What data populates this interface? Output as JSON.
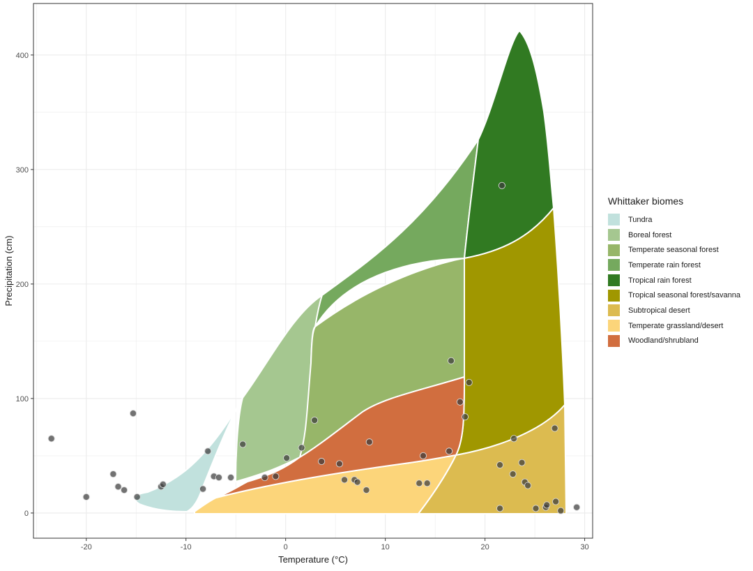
{
  "chart_data": {
    "type": "scatter",
    "xlabel": "Temperature (°C)",
    "ylabel": "Precipitation (cm)",
    "xlim": [
      -25.3,
      30.8
    ],
    "ylim": [
      -22,
      445
    ],
    "x_ticks": [
      -20,
      -10,
      0,
      10,
      20,
      30
    ],
    "y_ticks": [
      0,
      100,
      200,
      300,
      400
    ],
    "grid": true,
    "legend_position": "right",
    "legend_title": "Whittaker biomes",
    "biomes": [
      {
        "name": "Tundra",
        "color": "#C1E1DD"
      },
      {
        "name": "Boreal forest",
        "color": "#A5C790"
      },
      {
        "name": "Temperate seasonal forest",
        "color": "#97B669"
      },
      {
        "name": "Temperate rain forest",
        "color": "#75A95E"
      },
      {
        "name": "Tropical rain forest",
        "color": "#317A22"
      },
      {
        "name": "Tropical seasonal forest/savanna",
        "color": "#A09700"
      },
      {
        "name": "Subtropical desert",
        "color": "#DCBB50"
      },
      {
        "name": "Temperate grassland/desert",
        "color": "#FCD57A"
      },
      {
        "name": "Woodland/shrubland",
        "color": "#D16E3F"
      }
    ],
    "points": [
      {
        "x": -23.5,
        "y": 65
      },
      {
        "x": -20.0,
        "y": 14
      },
      {
        "x": -17.3,
        "y": 34
      },
      {
        "x": -16.8,
        "y": 23
      },
      {
        "x": -16.2,
        "y": 20
      },
      {
        "x": -15.3,
        "y": 87
      },
      {
        "x": -14.9,
        "y": 14
      },
      {
        "x": -12.5,
        "y": 23
      },
      {
        "x": -12.3,
        "y": 25
      },
      {
        "x": -8.3,
        "y": 21
      },
      {
        "x": -7.8,
        "y": 54
      },
      {
        "x": -7.2,
        "y": 32
      },
      {
        "x": -6.7,
        "y": 31
      },
      {
        "x": -5.5,
        "y": 31
      },
      {
        "x": -4.3,
        "y": 60
      },
      {
        "x": -2.1,
        "y": 31
      },
      {
        "x": -1.0,
        "y": 32
      },
      {
        "x": 0.1,
        "y": 48
      },
      {
        "x": 1.6,
        "y": 57
      },
      {
        "x": 2.9,
        "y": 81
      },
      {
        "x": 3.6,
        "y": 45
      },
      {
        "x": 5.4,
        "y": 43
      },
      {
        "x": 5.9,
        "y": 29
      },
      {
        "x": 6.9,
        "y": 29
      },
      {
        "x": 7.2,
        "y": 27
      },
      {
        "x": 8.1,
        "y": 20
      },
      {
        "x": 8.4,
        "y": 62
      },
      {
        "x": 13.4,
        "y": 26
      },
      {
        "x": 13.8,
        "y": 50
      },
      {
        "x": 14.2,
        "y": 26
      },
      {
        "x": 16.4,
        "y": 54
      },
      {
        "x": 16.6,
        "y": 133
      },
      {
        "x": 17.5,
        "y": 97
      },
      {
        "x": 18.0,
        "y": 84
      },
      {
        "x": 18.4,
        "y": 114
      },
      {
        "x": 21.5,
        "y": 42
      },
      {
        "x": 21.5,
        "y": 4
      },
      {
        "x": 21.7,
        "y": 286
      },
      {
        "x": 22.8,
        "y": 34
      },
      {
        "x": 22.9,
        "y": 65
      },
      {
        "x": 23.7,
        "y": 44
      },
      {
        "x": 24.0,
        "y": 27
      },
      {
        "x": 24.3,
        "y": 24
      },
      {
        "x": 25.1,
        "y": 4
      },
      {
        "x": 26.1,
        "y": 5
      },
      {
        "x": 26.2,
        "y": 7
      },
      {
        "x": 27.0,
        "y": 74
      },
      {
        "x": 27.1,
        "y": 10
      },
      {
        "x": 27.6,
        "y": 2
      },
      {
        "x": 29.2,
        "y": 5
      }
    ]
  }
}
